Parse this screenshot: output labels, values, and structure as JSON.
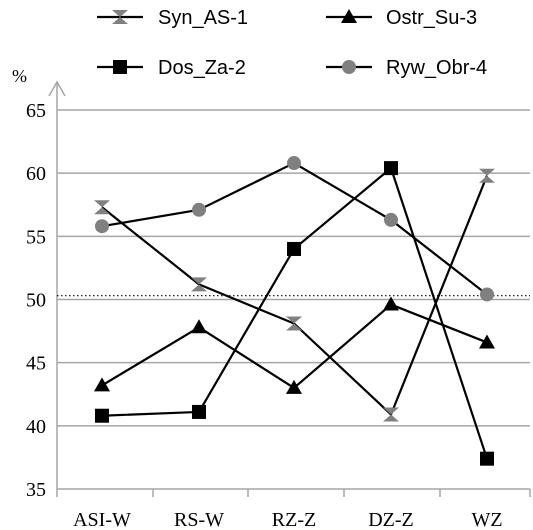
{
  "chart_data": {
    "type": "line",
    "categories": [
      "ASI-W",
      "RS-W",
      "RZ-Z",
      "DZ-Z",
      "WZ"
    ],
    "y_unit": "%",
    "ylim": [
      35,
      65
    ],
    "yticks": [
      35,
      40,
      45,
      50,
      55,
      60,
      65
    ],
    "grid": true,
    "legend_position": "top",
    "reference_line": {
      "value": 50.3,
      "style": "dotted"
    },
    "series": [
      {
        "name": "Syn_AS-1",
        "marker": "hourglass",
        "color": "#808080",
        "values": [
          57.3,
          51.2,
          48.1,
          40.9,
          59.8
        ]
      },
      {
        "name": "Ostr_Su-3",
        "marker": "triangle",
        "color": "#000000",
        "values": [
          43.2,
          47.8,
          43.0,
          49.6,
          46.6
        ]
      },
      {
        "name": "Dos_Za-2",
        "marker": "square",
        "color": "#000000",
        "values": [
          40.8,
          41.1,
          54.0,
          60.4,
          37.4
        ]
      },
      {
        "name": "Ryw_Obr-4",
        "marker": "circle",
        "color": "#808080",
        "values": [
          55.8,
          57.1,
          60.8,
          56.3,
          50.4
        ]
      }
    ],
    "line_color": "#000000",
    "grid_color": "#a6a6a6",
    "axis_color": "#a6a6a6"
  }
}
